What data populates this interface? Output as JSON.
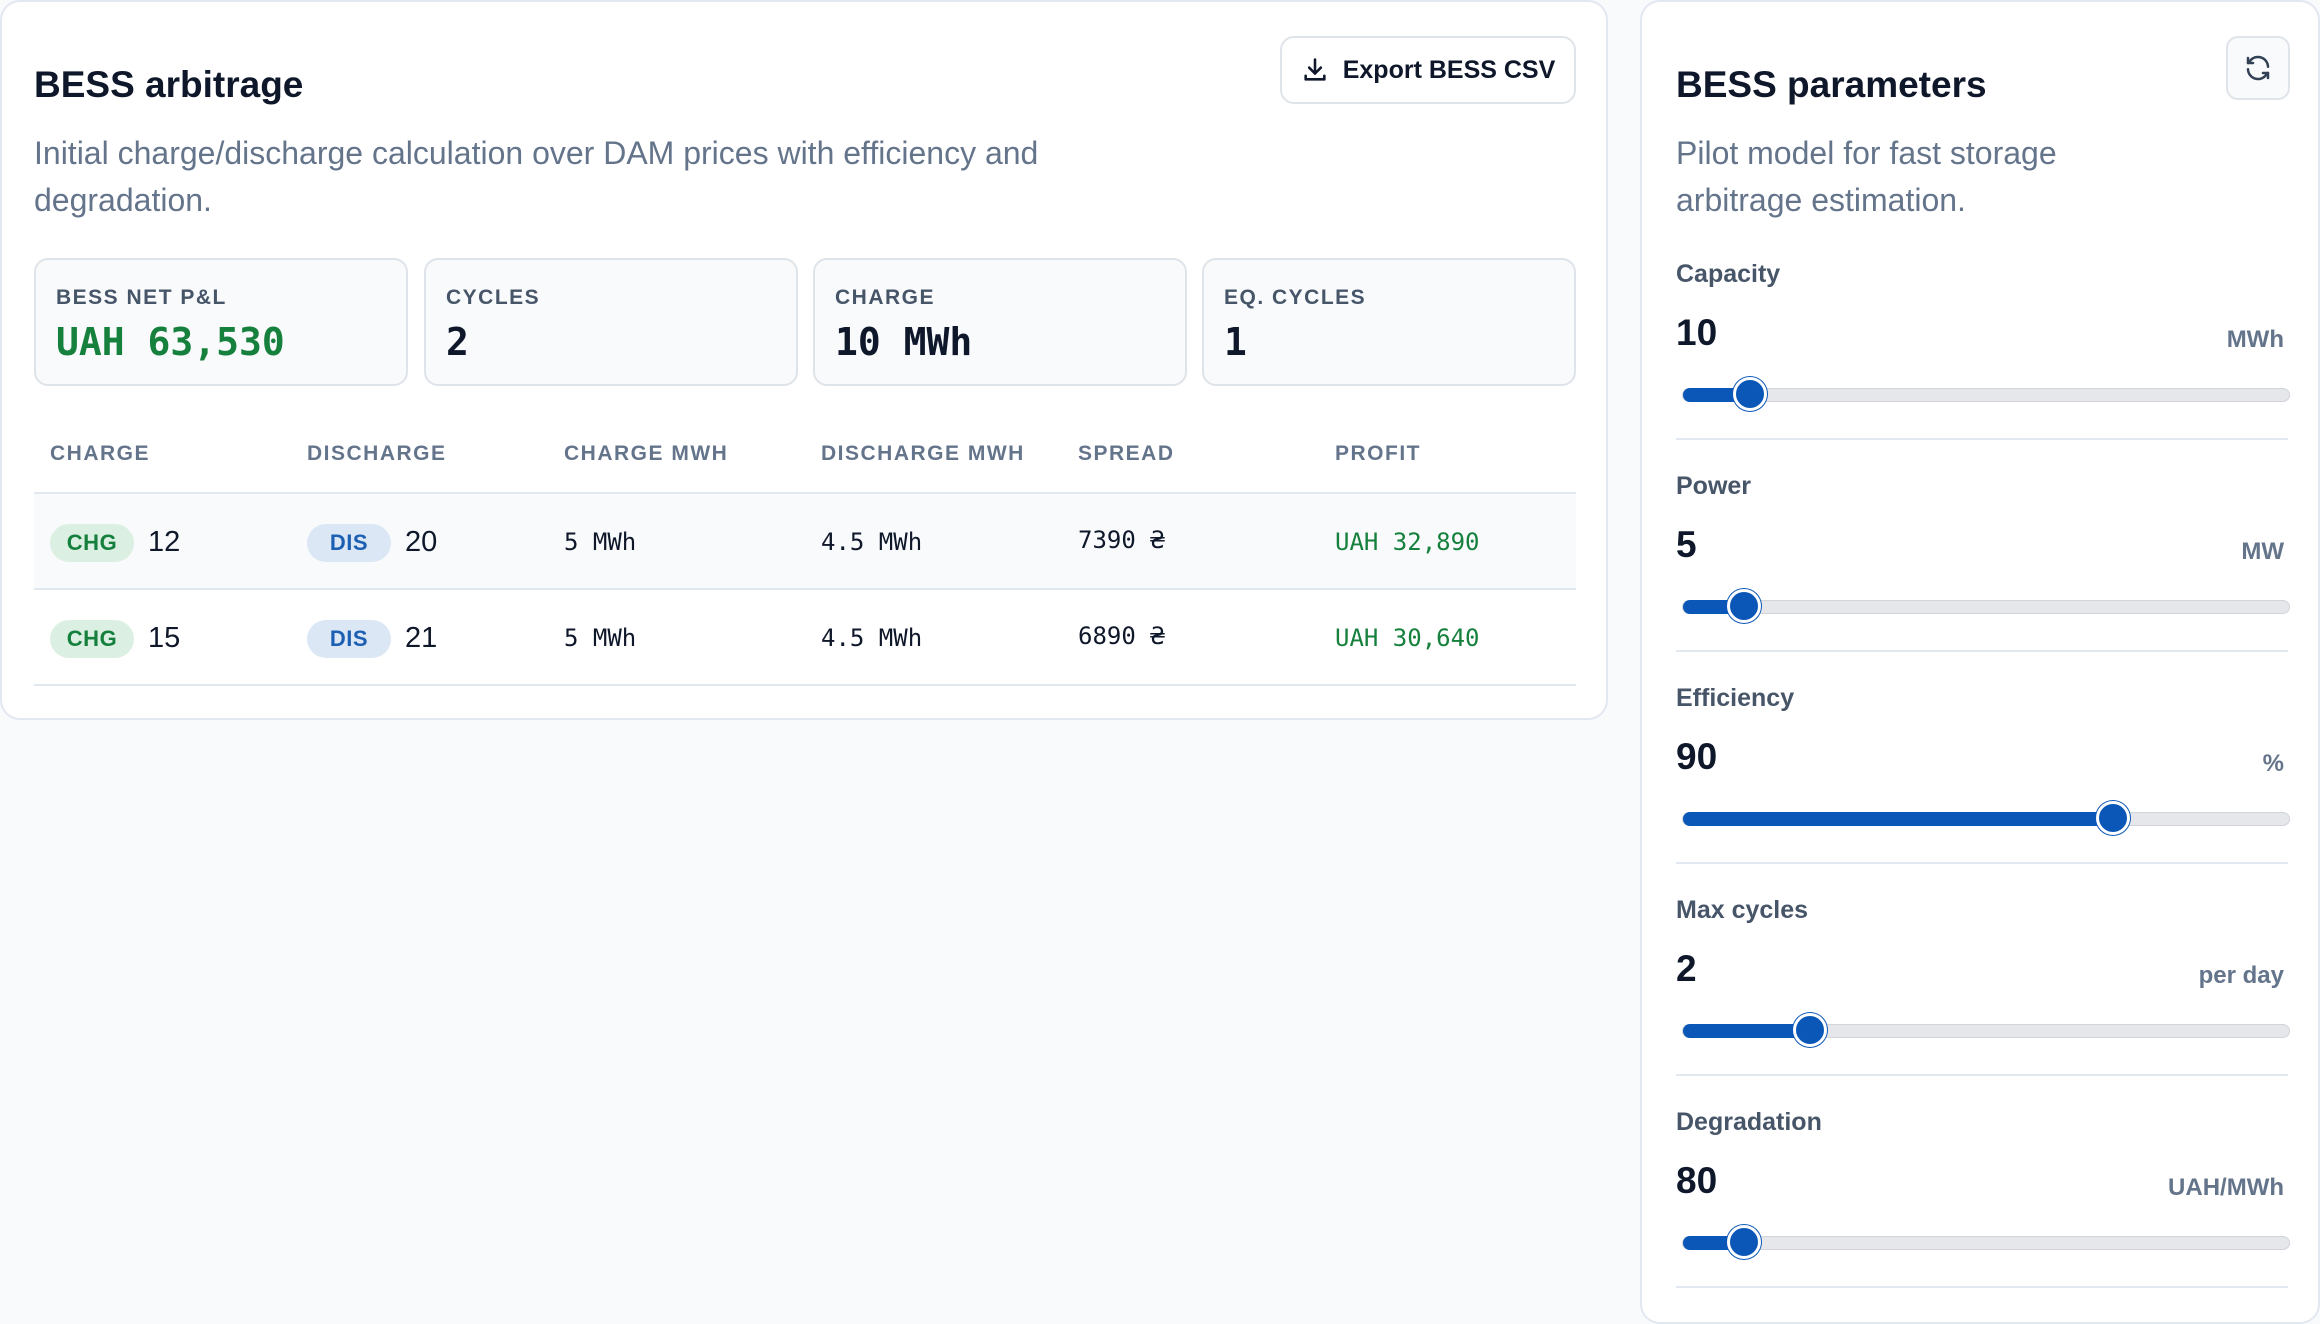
{
  "arbitrage": {
    "title": "BESS arbitrage",
    "subtitle": "Initial charge/discharge calculation over DAM prices with efficiency and degradation.",
    "export_label": "Export BESS CSV",
    "kpis": [
      {
        "label": "BESS NET P&L",
        "value": "UAH 63,530",
        "color": "#16803d"
      },
      {
        "label": "CYCLES",
        "value": "2"
      },
      {
        "label": "CHARGE",
        "value": "10 MWh"
      },
      {
        "label": "EQ. CYCLES",
        "value": "1"
      }
    ],
    "table": {
      "headers": [
        "CHARGE",
        "DISCHARGE",
        "CHARGE MWH",
        "DISCHARGE MWH",
        "SPREAD",
        "PROFIT"
      ],
      "rows": [
        {
          "chg_badge": "CHG",
          "chg_hour": "12",
          "dis_badge": "DIS",
          "dis_hour": "20",
          "charge_mwh": "5 MWh",
          "discharge_mwh": "4.5 MWh",
          "spread": "7390 ₴",
          "profit": "UAH 32,890"
        },
        {
          "chg_badge": "CHG",
          "chg_hour": "15",
          "dis_badge": "DIS",
          "dis_hour": "21",
          "charge_mwh": "5 MWh",
          "discharge_mwh": "4.5 MWh",
          "spread": "6890 ₴",
          "profit": "UAH 30,640"
        }
      ]
    }
  },
  "parameters": {
    "title": "BESS parameters",
    "subtitle_line1": "Pilot model for fast storage",
    "subtitle_line2": "arbitrage estimation.",
    "items": [
      {
        "label": "Capacity",
        "value": "10",
        "unit": "MWh",
        "level": 0.11
      },
      {
        "label": "Power",
        "value": "5",
        "unit": "MW",
        "level": 0.1
      },
      {
        "label": "Efficiency",
        "value": "90",
        "unit": "%",
        "level": 0.71
      },
      {
        "label": "Max cycles",
        "value": "2",
        "unit": "per day",
        "level": 0.21
      },
      {
        "label": "Degradation",
        "value": "80",
        "unit": "UAH/MWh",
        "level": 0.1
      }
    ]
  },
  "colors": {
    "accent": "#0b57b8",
    "positive": "#16803d"
  },
  "icons": {
    "export": "download-icon",
    "refresh": "refresh-icon"
  }
}
